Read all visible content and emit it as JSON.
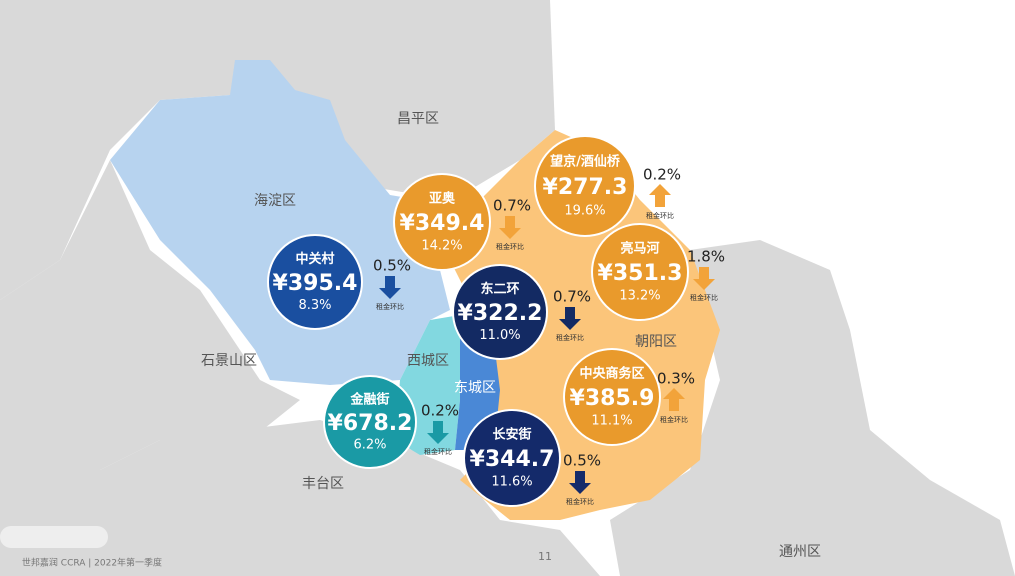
{
  "districts": [
    "昌平区",
    "海淀区",
    "石景山区",
    "丰台区",
    "西城区",
    "东城区",
    "朝阳区",
    "通州区"
  ],
  "markets": [
    {
      "name": "中关村",
      "rent": "¥395.4",
      "share": "8.3%",
      "change": "0.5%",
      "trend": "down",
      "change_label": "租金环比",
      "color": "#1a4fa0",
      "arrow_color": "#1a4fa0"
    },
    {
      "name": "亚奥",
      "rent": "¥349.4",
      "share": "14.2%",
      "change": "0.7%",
      "trend": "down",
      "change_label": "租金环比",
      "color": "#e99a2c",
      "arrow_color": "#f2a33a"
    },
    {
      "name": "望京/酒仙桥",
      "rent": "¥277.3",
      "share": "19.6%",
      "change": "0.2%",
      "trend": "up",
      "change_label": "租金环比",
      "color": "#e99a2c",
      "arrow_color": "#f2a33a"
    },
    {
      "name": "亮马河",
      "rent": "¥351.3",
      "share": "13.2%",
      "change": "1.8%",
      "trend": "down",
      "change_label": "租金环比",
      "color": "#e99a2c",
      "arrow_color": "#f2a33a"
    },
    {
      "name": "东二环",
      "rent": "¥322.2",
      "share": "11.0%",
      "change": "0.7%",
      "trend": "down",
      "change_label": "租金环比",
      "color": "#132a63",
      "arrow_color": "#132a63"
    },
    {
      "name": "中央商务区",
      "rent": "¥385.9",
      "share": "11.1%",
      "change": "0.3%",
      "trend": "up",
      "change_label": "租金环比",
      "color": "#e99a2c",
      "arrow_color": "#f2a33a"
    },
    {
      "name": "金融街",
      "rent": "¥678.2",
      "share": "6.2%",
      "change": "0.2%",
      "trend": "down",
      "change_label": "租金环比",
      "color": "#1a9aa5",
      "arrow_color": "#1a9aa5"
    },
    {
      "name": "长安街",
      "rent": "¥344.7",
      "share": "11.6%",
      "change": "0.5%",
      "trend": "down",
      "change_label": "租金环比",
      "color": "#142a6a",
      "arrow_color": "#142a6a"
    }
  ],
  "footer": {
    "source": "世邦嘉润 CCRA | 2022年第一季度",
    "page": "11"
  }
}
